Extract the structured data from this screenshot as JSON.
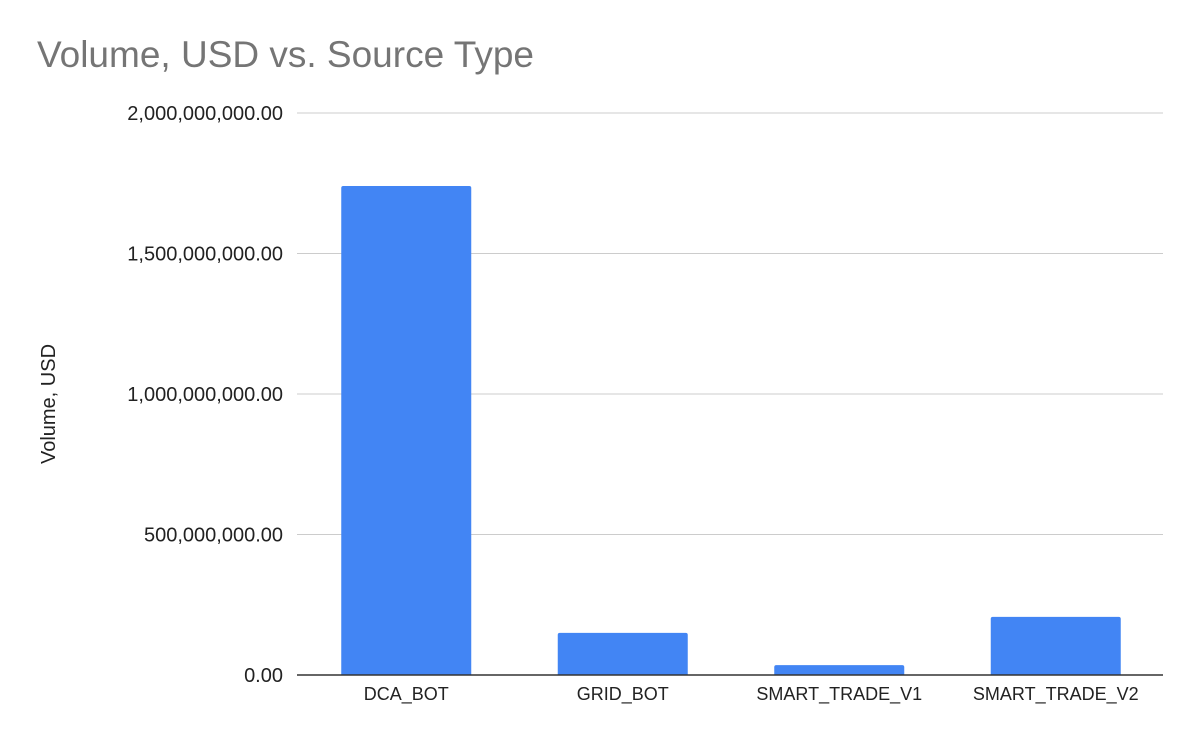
{
  "chart_data": {
    "type": "bar",
    "title": "Volume, USD vs. Source Type",
    "xlabel": "",
    "ylabel": "Volume, USD",
    "categories": [
      "DCA_BOT",
      "GRID_BOT",
      "SMART_TRADE_V1",
      "SMART_TRADE_V2"
    ],
    "values": [
      1740000000,
      150000000,
      35000000,
      207000000
    ],
    "ylim": [
      0,
      2000000000
    ],
    "yticks": [
      0,
      500000000,
      1000000000,
      1500000000,
      2000000000
    ],
    "ytick_labels": [
      "0.00",
      "500,000,000.00",
      "1,000,000,000.00",
      "1,500,000,000.00",
      "2,000,000,000.00"
    ],
    "grid": true,
    "legend": "none",
    "bar_color": "#4285f4",
    "gridline_color": "#cccccc",
    "baseline_color": "#333333"
  }
}
